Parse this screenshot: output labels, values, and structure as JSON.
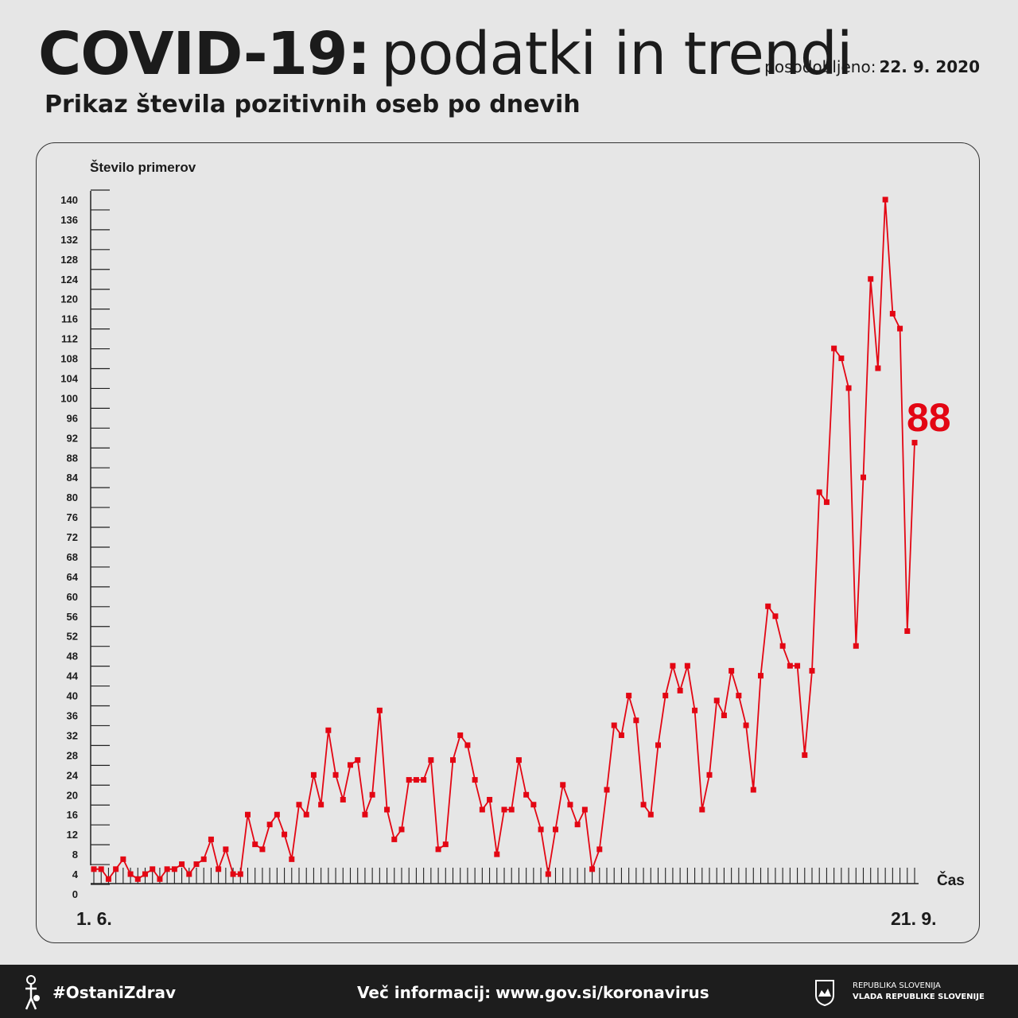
{
  "header": {
    "title_bold": "COVID-19:",
    "title_light": "podatki in trendi",
    "updated_label": "posodobljeno:",
    "updated_date": "22. 9. 2020",
    "subtitle": "Prikaz števila pozitivnih oseb po dnevih"
  },
  "chart_data": {
    "type": "line",
    "ylabel": "Število primerov",
    "xlabel": "Čas",
    "x_start_label": "1. 6.",
    "x_end_label": "21. 9.",
    "ylim": [
      0,
      140
    ],
    "yticks": [
      "0",
      "4",
      "8",
      "12",
      "16",
      "20",
      "24",
      "28",
      "32",
      "36",
      "40",
      "44",
      "48",
      "52",
      "56",
      "60",
      "64",
      "68",
      "72",
      "76",
      "80",
      "84",
      "88",
      "92",
      "96",
      "100",
      "104",
      "108",
      "112",
      "116",
      "120",
      "124",
      "128",
      "132",
      "136",
      "140"
    ],
    "highlight_value": "88",
    "color": "#e30613",
    "values": [
      5,
      5,
      3,
      5,
      7,
      4,
      3,
      4,
      5,
      3,
      5,
      5,
      6,
      4,
      6,
      7,
      11,
      5,
      9,
      4,
      4,
      16,
      10,
      9,
      14,
      16,
      12,
      7,
      18,
      16,
      24,
      18,
      33,
      24,
      19,
      26,
      27,
      16,
      20,
      37,
      17,
      11,
      13,
      23,
      23,
      23,
      27,
      9,
      10,
      27,
      32,
      30,
      23,
      17,
      19,
      8,
      17,
      17,
      27,
      20,
      18,
      13,
      4,
      13,
      22,
      18,
      14,
      17,
      5,
      9,
      21,
      34,
      32,
      40,
      35,
      18,
      16,
      30,
      40,
      46,
      41,
      46,
      37,
      17,
      24,
      39,
      36,
      45,
      40,
      34,
      21,
      44,
      58,
      56,
      50,
      46,
      46,
      28,
      45,
      81,
      79,
      110,
      108,
      102,
      50,
      84,
      124,
      106,
      140,
      117,
      114,
      53,
      91
    ]
  },
  "footer": {
    "hashtag": "#OstaniZdrav",
    "more_info_label": "Več informacij:",
    "more_info_url": "www.gov.si/koronavirus",
    "gov_line1": "REPUBLIKA SLOVENIJA",
    "gov_line2": "VLADA REPUBLIKE SLOVENIJE",
    "virus_logo_icon": "person-virus-icon",
    "coat_icon": "slovenia-coat-of-arms-icon"
  }
}
